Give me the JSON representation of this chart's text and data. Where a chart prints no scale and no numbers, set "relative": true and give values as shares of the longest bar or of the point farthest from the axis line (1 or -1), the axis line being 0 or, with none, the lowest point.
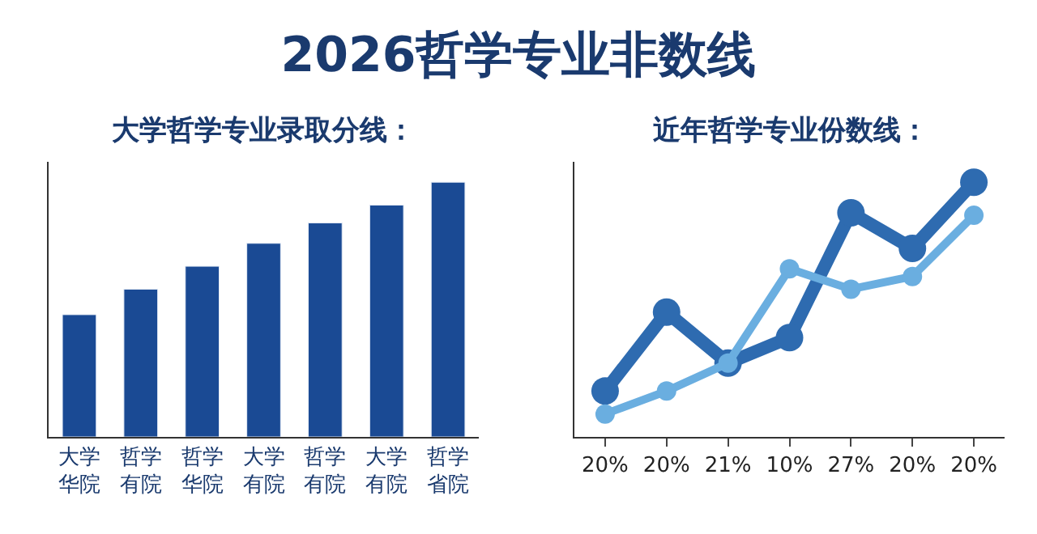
{
  "chart_data": [
    {
      "type": "bar",
      "title": "2026哲学专业非数线",
      "subtitle": "大学哲学专业录取分线：",
      "categories": [
        "大学华院",
        "哲学有院",
        "哲学华院",
        "大学有院",
        "哲学有院",
        "大学有院",
        "哲学省院"
      ],
      "relative": true,
      "series": [
        {
          "color": "#1a4a94",
          "values": [
            0.48,
            0.58,
            0.67,
            0.76,
            0.84,
            0.91,
            1
          ]
        }
      ]
    },
    {
      "type": "line",
      "subtitle": "近年哲学专业份数线：",
      "categories": [
        "20%",
        "20%",
        "21%",
        "10%",
        "27%",
        "20%",
        "20%"
      ],
      "relative": true,
      "series": [
        {
          "color": "#2e6bb0",
          "values": [
            0.18,
            0.49,
            0.29,
            0.39,
            0.88,
            0.74,
            1
          ]
        },
        {
          "color": "#6aaee0",
          "values": [
            0.09,
            0.18,
            0.29,
            0.66,
            0.58,
            0.63,
            0.87
          ]
        }
      ],
      "marker": "circle",
      "line_style": "solid"
    }
  ]
}
